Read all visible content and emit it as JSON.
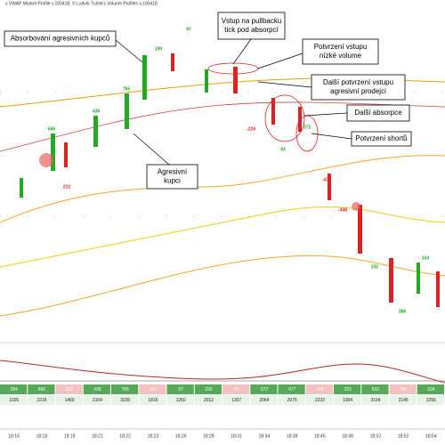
{
  "header": {
    "title": "s VWAP Market Profile v.100418, © Ludvík Tuček's Volume Profiles v.100418"
  },
  "annotations": [
    {
      "lines": [
        "Absorbování agresivních kupců"
      ]
    },
    {
      "lines": [
        "Vstup na pullbacku",
        "tick pod absorpcí"
      ]
    },
    {
      "lines": [
        "Potvrzení vstupu",
        "nízké volume"
      ]
    },
    {
      "lines": [
        "Další potvrzení vstupu",
        "agresivní prodejci"
      ]
    },
    {
      "lines": [
        "Další absorpce"
      ]
    },
    {
      "lines": [
        "Potvrzení shortů"
      ]
    },
    {
      "lines": [
        "Agresivní",
        "kupci"
      ]
    }
  ],
  "candle_labels": [
    "666",
    "222",
    "436",
    "765",
    "190",
    "97",
    "-226",
    "93",
    "372",
    "-477",
    "-348",
    "332",
    "386",
    "334"
  ],
  "table": {
    "rows": [
      [
        "394",
        "666",
        "222",
        "436",
        "765",
        "190",
        "97",
        "226",
        "93",
        "372",
        "477",
        "348",
        "222",
        "532",
        "386",
        "334"
      ],
      [
        "1026",
        "2218",
        "1460",
        "2104",
        "3235",
        "1816",
        "1260",
        "2012",
        "1307",
        "2064",
        "2975",
        "2233",
        "1904",
        "3194",
        "2145",
        "2256"
      ]
    ]
  },
  "times": [
    "18:16",
    "18:18",
    "18:19",
    "18:21",
    "18:22",
    "18:23",
    "18:26",
    "18:28",
    "18:31",
    "18:34",
    "18:38",
    "18:45",
    "18:48",
    "18:52",
    "18:52",
    "18:54"
  ]
}
